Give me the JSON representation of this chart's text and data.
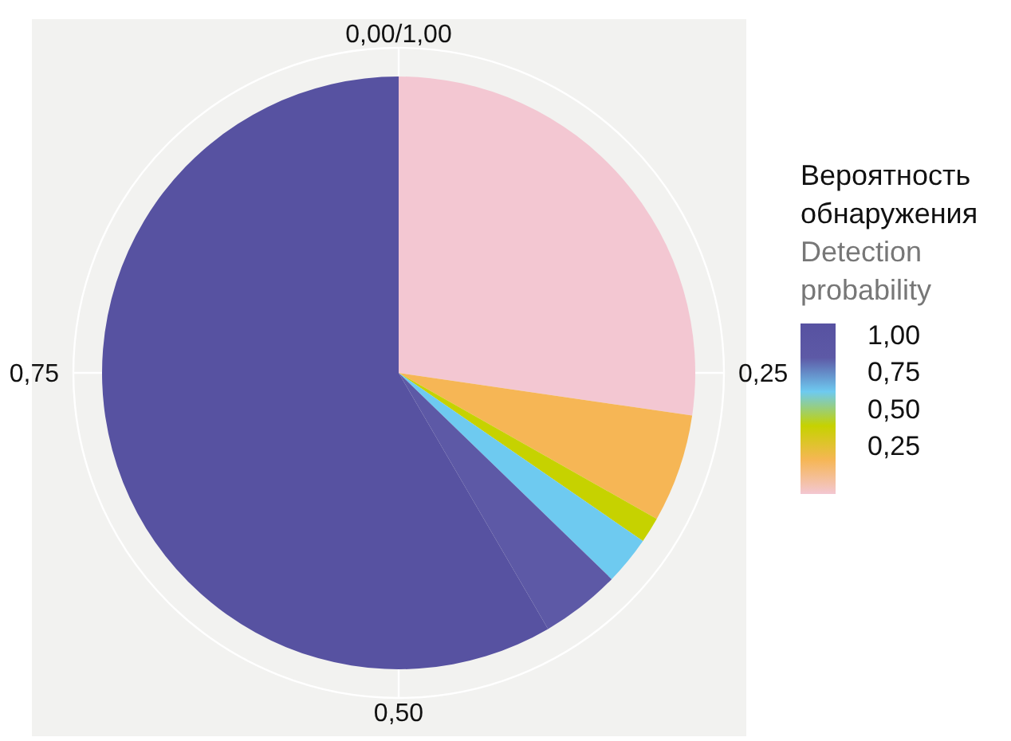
{
  "chart_data": {
    "type": "pie",
    "categories": [
      null,
      null,
      null,
      null,
      null,
      null
    ],
    "values": [
      27.3,
      5.9,
      1.4,
      2.65,
      4.35,
      58.4
    ],
    "colors": [
      "#f3c7d2",
      "#f6b655",
      "#c6d200",
      "#6ecaf0",
      "#5d59a6",
      "#5752a1"
    ],
    "grid": true,
    "legend_title": "Вероятность\nобнаружения\nDetection\nprobability",
    "annotations": [
      "0,00/1,00",
      "0,25",
      "0,50",
      "0,75",
      "1,00",
      "0,75",
      "0,50",
      "0,25"
    ]
  }
}
